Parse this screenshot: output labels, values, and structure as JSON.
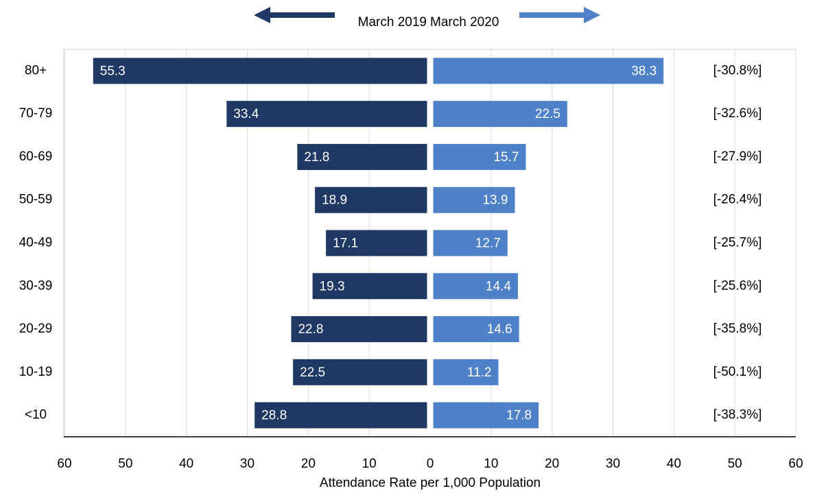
{
  "chart_data": {
    "type": "butterfly",
    "x_label": "Attendance Rate per 1,000 Population",
    "categories": [
      "80+",
      "70-79",
      "60-69",
      "50-59",
      "40-49",
      "30-39",
      "20-29",
      "10-19",
      "<10"
    ],
    "series": [
      {
        "name": "March 2019",
        "color": "#1f3864",
        "side": "left",
        "values": [
          55.3,
          33.4,
          21.8,
          18.9,
          17.1,
          19.3,
          22.8,
          22.5,
          28.8
        ]
      },
      {
        "name": "March 2020",
        "color": "#4f81c9",
        "side": "right",
        "values": [
          38.3,
          22.5,
          15.7,
          13.9,
          12.7,
          14.4,
          14.6,
          11.2,
          17.8
        ]
      }
    ],
    "annotations": [
      "[-30.8%]",
      "[-32.6%]",
      "[-27.9%]",
      "[-26.4%]",
      "[-25.7%]",
      "[-25.6%]",
      "[-35.8%]",
      "[-50.1%]",
      "[-38.3%]"
    ],
    "xlim": [
      0,
      60
    ],
    "xticks": [
      0,
      10,
      20,
      30,
      40,
      50,
      60
    ],
    "xticks_left": [
      10,
      20,
      30,
      40,
      50,
      60
    ],
    "grid": true
  }
}
